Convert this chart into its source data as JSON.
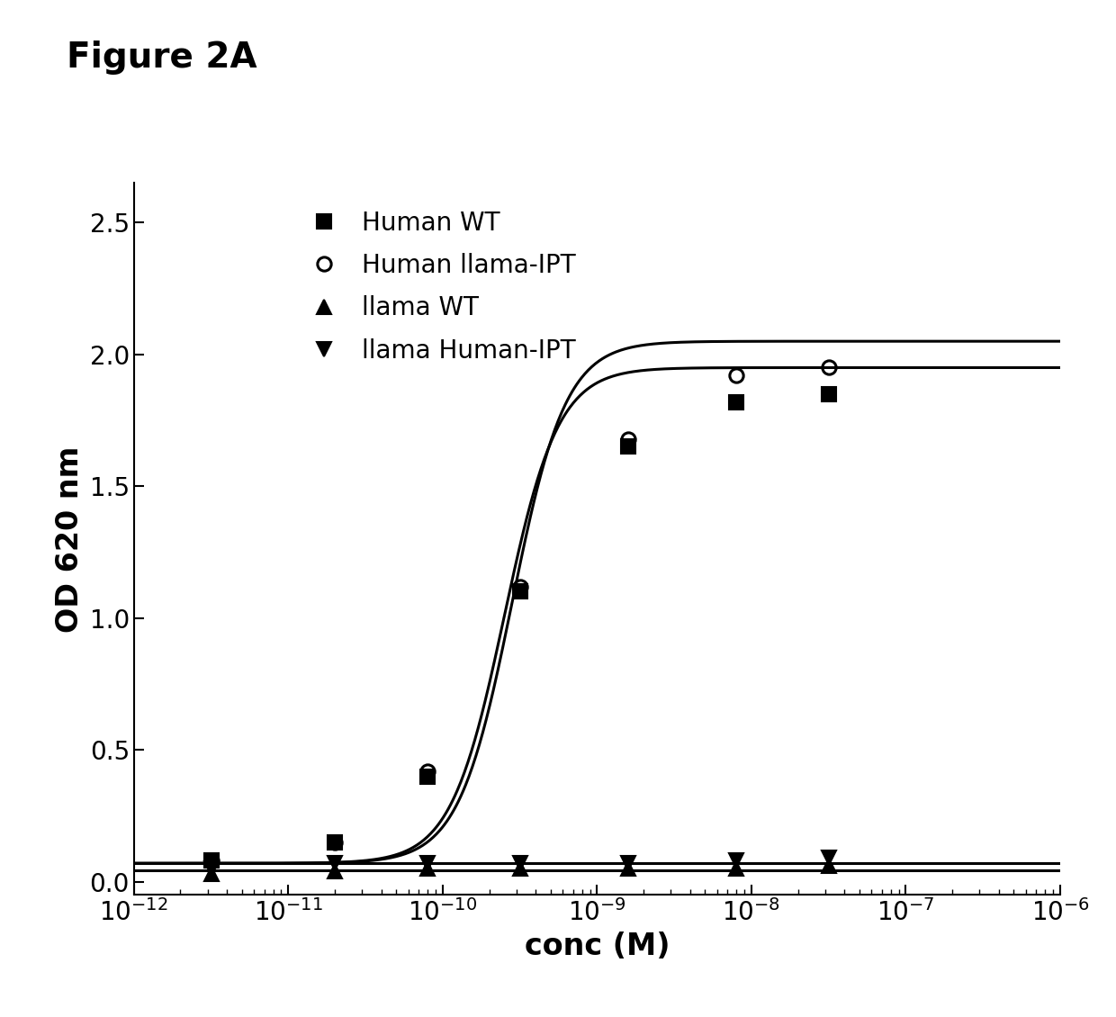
{
  "title": "Figure 2A",
  "xlabel": "conc (M)",
  "ylabel": "OD 620 nm",
  "xlim_log": [
    -12,
    -6
  ],
  "ylim": [
    -0.05,
    2.65
  ],
  "yticks": [
    0.0,
    0.5,
    1.0,
    1.5,
    2.0,
    2.5
  ],
  "background_color": "#ffffff",
  "series": [
    {
      "label": "Human WT",
      "marker": "s",
      "marker_size": 11,
      "fillstyle": "full",
      "color": "#000000",
      "x_log": [
        -11.5,
        -10.7,
        -10.1,
        -9.5,
        -8.8,
        -8.1,
        -7.5
      ],
      "y": [
        0.08,
        0.15,
        0.4,
        1.1,
        1.65,
        1.82,
        1.85
      ],
      "sigmoid": true,
      "ec50_log": -9.6,
      "hill": 2.5,
      "bottom": 0.07,
      "top": 1.95
    },
    {
      "label": "Human llama-IPT",
      "marker": "o",
      "marker_size": 11,
      "fillstyle": "none",
      "color": "#000000",
      "x_log": [
        -11.5,
        -10.7,
        -10.1,
        -9.5,
        -8.8,
        -8.1,
        -7.5
      ],
      "y": [
        0.08,
        0.15,
        0.42,
        1.12,
        1.68,
        1.92,
        1.95
      ],
      "sigmoid": true,
      "ec50_log": -9.55,
      "hill": 2.5,
      "bottom": 0.07,
      "top": 2.05
    },
    {
      "label": "llama WT",
      "marker": "^",
      "marker_size": 11,
      "fillstyle": "full",
      "color": "#000000",
      "x_log": [
        -11.5,
        -10.7,
        -10.1,
        -9.5,
        -8.8,
        -8.1,
        -7.5
      ],
      "y": [
        0.03,
        0.04,
        0.05,
        0.05,
        0.05,
        0.05,
        0.06
      ],
      "sigmoid": false,
      "flat_y": 0.045
    },
    {
      "label": "llama Human-IPT",
      "marker": "v",
      "marker_size": 11,
      "fillstyle": "full",
      "color": "#000000",
      "x_log": [
        -11.5,
        -10.7,
        -10.1,
        -9.5,
        -8.8,
        -8.1,
        -7.5
      ],
      "y": [
        0.05,
        0.07,
        0.07,
        0.07,
        0.07,
        0.08,
        0.09
      ],
      "sigmoid": false,
      "flat_y": 0.07
    }
  ],
  "line_color": "#000000",
  "line_width": 2.2,
  "legend_fontsize": 20,
  "axis_label_fontsize": 24,
  "tick_fontsize": 20,
  "title_fontsize": 28
}
